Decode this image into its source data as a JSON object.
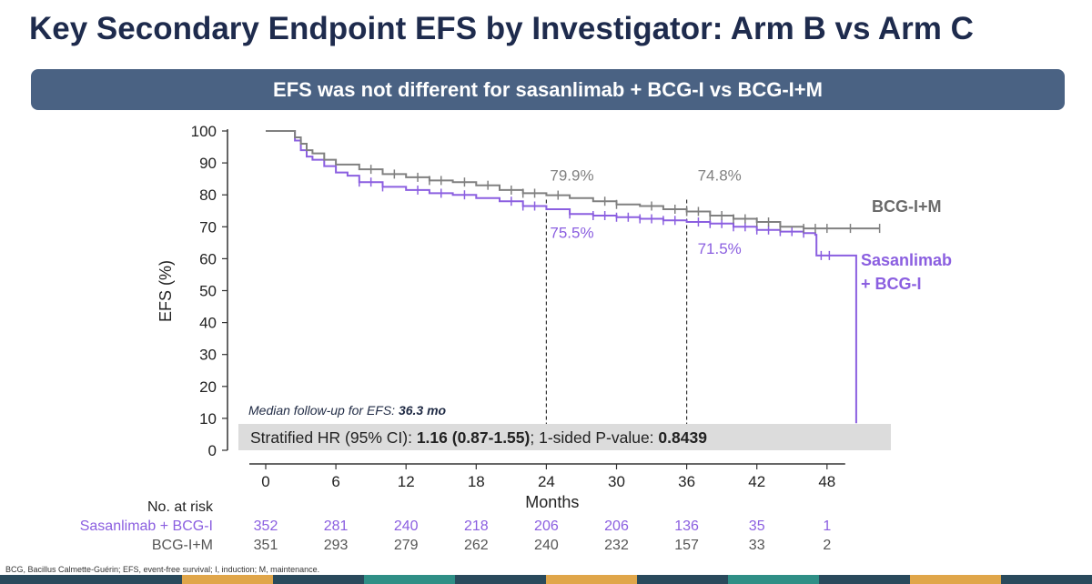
{
  "title": "Key Secondary Endpoint EFS by Investigator: Arm B vs Arm C",
  "banner": "EFS was not different for sasanlimab + BCG-I vs BCG-I+M",
  "colors": {
    "arm_b": "#8b5fe0",
    "arm_c": "#808080",
    "banner": "#4a6283",
    "title": "#1e2b4d"
  },
  "chart_data": {
    "type": "line",
    "subtype": "kaplan-meier",
    "xlabel": "Months",
    "ylabel": "EFS (%)",
    "xlim": [
      0,
      56
    ],
    "ylim": [
      0,
      100
    ],
    "xticks": [
      0,
      6,
      12,
      18,
      24,
      30,
      36,
      42,
      48
    ],
    "yticks": [
      0,
      10,
      20,
      30,
      40,
      50,
      60,
      70,
      80,
      90,
      100
    ],
    "grid": false,
    "series": [
      {
        "name": "BCG-I+M",
        "color": "#808080",
        "x": [
          0,
          2,
          2.5,
          3,
          3.5,
          4,
          5,
          6,
          8,
          10,
          12,
          14,
          16,
          18,
          20,
          22,
          24,
          26,
          28,
          30,
          32,
          34,
          36,
          38,
          40,
          42,
          44,
          46,
          48,
          50,
          52.5
        ],
        "y": [
          100,
          100,
          98,
          96,
          94,
          93,
          91,
          89.5,
          88,
          86.5,
          85.5,
          84.5,
          84,
          83,
          81.5,
          80.5,
          79.9,
          79,
          78,
          77,
          76.5,
          75.5,
          74.8,
          73.5,
          72.5,
          71.5,
          70,
          69.5,
          69.5,
          69.5,
          69.5
        ],
        "censor_x": [
          9,
          11,
          13,
          14,
          15,
          17,
          19,
          21,
          22,
          23,
          25,
          29,
          30,
          33,
          35,
          36,
          37,
          38,
          39,
          40,
          41,
          42,
          43,
          44,
          46,
          47,
          48,
          50,
          52.5
        ]
      },
      {
        "name": "Sasanlimab + BCG-I",
        "color": "#8b5fe0",
        "x": [
          0,
          2,
          2.5,
          3,
          3.5,
          4,
          5,
          6,
          7,
          8,
          10,
          12,
          14,
          16,
          18,
          20,
          22,
          24,
          26,
          28,
          30,
          32,
          34,
          36,
          38,
          40,
          42,
          44,
          46,
          47,
          47.1,
          50.4,
          50.5
        ],
        "y": [
          100,
          100,
          97,
          94,
          92,
          91,
          89,
          87,
          86,
          84,
          82.5,
          81.5,
          80.5,
          80,
          79,
          78,
          76.5,
          75.5,
          74,
          73.5,
          73,
          72.5,
          72,
          71.5,
          71,
          70,
          69,
          68.5,
          68,
          67.5,
          61,
          61,
          8.5
        ],
        "censor_x": [
          8,
          9,
          10,
          13,
          15,
          17,
          21,
          22,
          23,
          26,
          28,
          29,
          30,
          31,
          32,
          33,
          34,
          35,
          37,
          38,
          39,
          40,
          41,
          42,
          43,
          44,
          45,
          46,
          47.5,
          48.2
        ]
      }
    ],
    "landmarks": [
      {
        "month": 24,
        "arm_c_label": "79.9%",
        "arm_b_label": "75.5%"
      },
      {
        "month": 36,
        "arm_c_label": "74.8%",
        "arm_b_label": "71.5%"
      }
    ],
    "line_labels": {
      "arm_c": "BCG-I+M",
      "arm_b_line1": "Sasanlimab",
      "arm_b_line2": "+ BCG-I"
    },
    "annotation": {
      "followup_prefix": "Median follow-up for EFS: ",
      "followup_value": "36.3 mo"
    },
    "stats": {
      "prefix": "Stratified HR (95% CI): ",
      "hr": "1.16 (0.87-1.55)",
      "middle": "; 1-sided P-value: ",
      "p": "0.8439"
    },
    "risk_table": {
      "header": "No. at risk",
      "rows": [
        {
          "label": "Sasanlimab + BCG-I",
          "color": "#8b5fe0",
          "values": [
            "352",
            "281",
            "240",
            "218",
            "206",
            "206",
            "136",
            "35",
            "1"
          ]
        },
        {
          "label": "BCG-I+M",
          "color": "#555555",
          "values": [
            "351",
            "293",
            "279",
            "262",
            "240",
            "232",
            "157",
            "33",
            "2"
          ]
        }
      ]
    }
  },
  "footnote": "BCG, Bacillus Calmette-Guérin; EFS, event-free survival; I, induction; M, maintenance.",
  "decor_colors": [
    "#2a4a5c",
    "#2a4a5c",
    "#e0a64a",
    "#2a4a5c",
    "#2f8f86",
    "#2a4a5c",
    "#e0a64a",
    "#2a4a5c",
    "#2f8f86",
    "#2a4a5c",
    "#e0a64a",
    "#2a4a5c"
  ]
}
